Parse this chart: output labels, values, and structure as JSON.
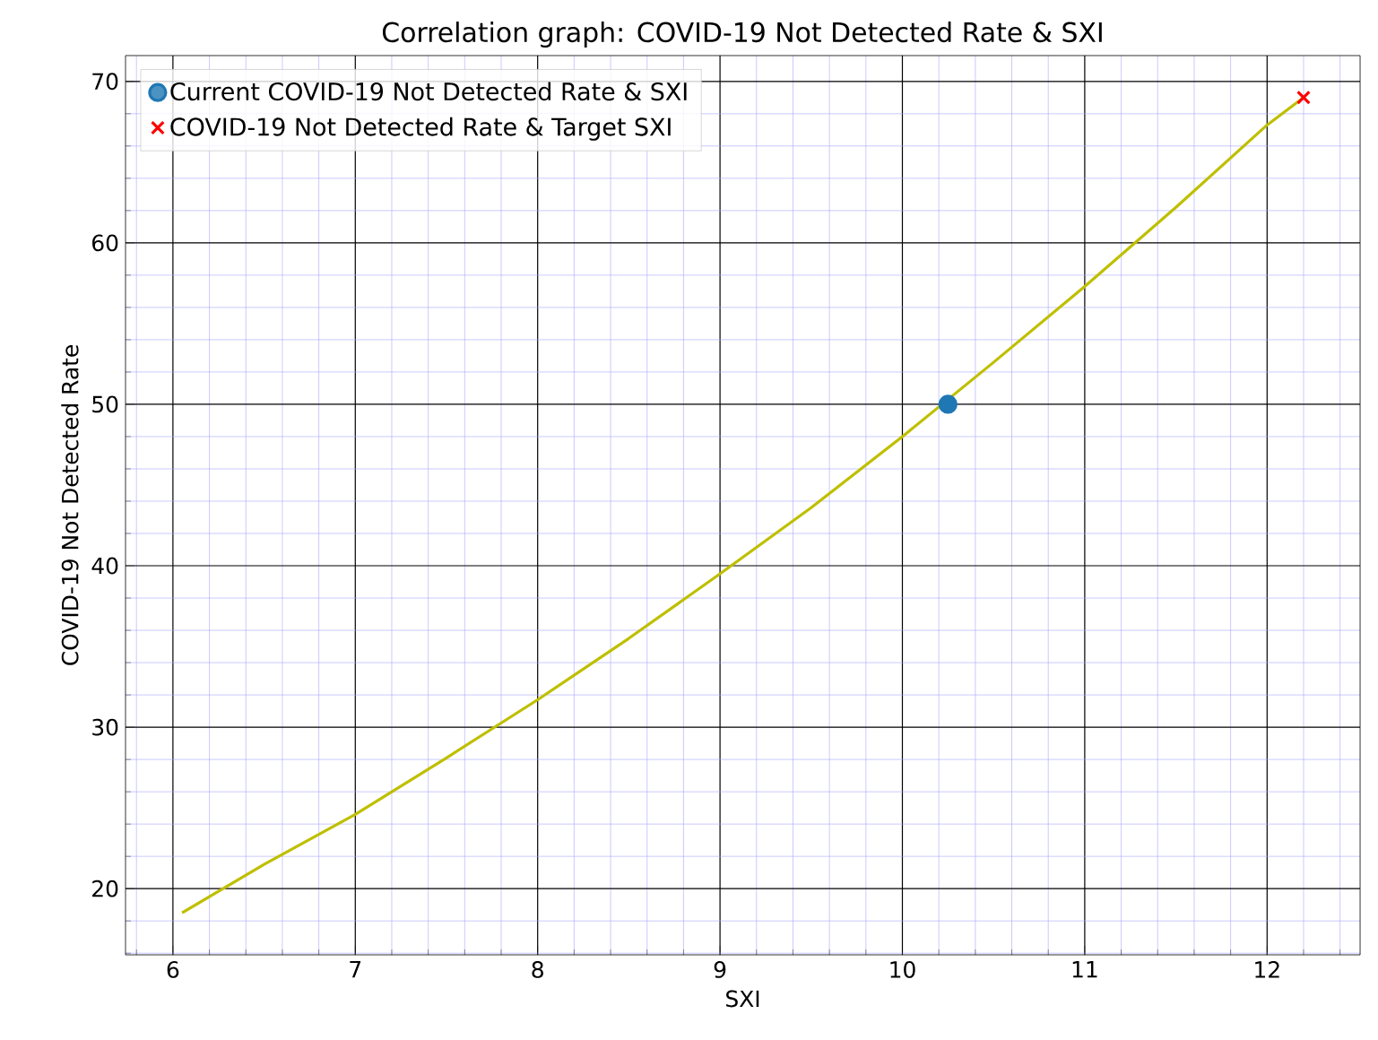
{
  "chart_data": {
    "type": "scatter",
    "title": "Correlation graph: COVID-19 Not Detected Rate & SXI",
    "xlabel": "SXI",
    "ylabel": "COVID-19 Not Detected Rate",
    "xlim": [
      5.74,
      12.51
    ],
    "ylim": [
      15.9,
      71.6
    ],
    "xticks": [
      {
        "value": 5.8,
        "label": null
      },
      6,
      {
        "value": 6.2,
        "label": null
      },
      {
        "value": 6.4,
        "label": null
      },
      {
        "value": 6.6,
        "label": null
      },
      {
        "value": 6.8,
        "label": null
      },
      7,
      {
        "value": 7.2,
        "label": null
      },
      {
        "value": 7.4,
        "label": null
      },
      {
        "value": 7.6,
        "label": null
      },
      {
        "value": 7.8,
        "label": null
      },
      8,
      {
        "value": 8.2,
        "label": null
      },
      {
        "value": 8.4,
        "label": null
      },
      {
        "value": 8.6,
        "label": null
      },
      {
        "value": 8.8,
        "label": null
      },
      9,
      {
        "value": 9.2,
        "label": null
      },
      {
        "value": 9.4,
        "label": null
      },
      {
        "value": 9.6,
        "label": null
      },
      {
        "value": 9.8,
        "label": null
      },
      10,
      {
        "value": 10.2,
        "label": null
      },
      {
        "value": 10.4,
        "label": null
      },
      {
        "value": 10.6,
        "label": null
      },
      {
        "value": 10.8,
        "label": null
      },
      11,
      {
        "value": 11.2,
        "label": null
      },
      {
        "value": 11.4,
        "label": null
      },
      {
        "value": 11.6,
        "label": null
      },
      {
        "value": 11.8,
        "label": null
      },
      12,
      {
        "value": 12.2,
        "label": null
      },
      {
        "value": 12.4,
        "label": null
      }
    ],
    "yticks": [
      {
        "value": 16,
        "label": null
      },
      {
        "value": 18,
        "label": null
      },
      20,
      {
        "value": 22,
        "label": null
      },
      {
        "value": 24,
        "label": null
      },
      {
        "value": 26,
        "label": null
      },
      {
        "value": 28,
        "label": null
      },
      30,
      {
        "value": 32,
        "label": null
      },
      {
        "value": 34,
        "label": null
      },
      {
        "value": 36,
        "label": null
      },
      {
        "value": 38,
        "label": null
      },
      40,
      {
        "value": 42,
        "label": null
      },
      {
        "value": 44,
        "label": null
      },
      {
        "value": 46,
        "label": null
      },
      {
        "value": 48,
        "label": null
      },
      50,
      {
        "value": 52,
        "label": null
      },
      {
        "value": 54,
        "label": null
      },
      {
        "value": 56,
        "label": null
      },
      {
        "value": 58,
        "label": null
      },
      60,
      {
        "value": 62,
        "label": null
      },
      {
        "value": 64,
        "label": null
      },
      {
        "value": 66,
        "label": null
      },
      {
        "value": 68,
        "label": null
      },
      70
    ],
    "grid": true,
    "legend": "top left",
    "series": [
      {
        "type": "line",
        "color": "#bfbf00",
        "marker": "none",
        "x": [
          6.05,
          6.5,
          7,
          7.5,
          8,
          8.5,
          9,
          9.5,
          10,
          10.5,
          11,
          11.5,
          12,
          12.2
        ],
        "values": [
          18.5,
          21.5,
          24.6,
          28.1,
          31.7,
          35.5,
          39.5,
          43.6,
          48,
          52.6,
          57.3,
          62.2,
          67.3,
          69
        ]
      },
      {
        "name": "Current COVID-19 Not Detected Rate & SXI",
        "color": "#1f77b4",
        "marker": "circle",
        "x": [
          10.25
        ],
        "values": [
          50
        ]
      },
      {
        "name": "COVID-19 Not Detected Rate & Target SXI",
        "color": "#ff0000",
        "marker": "cross",
        "x": [
          12.2
        ],
        "values": [
          69
        ]
      }
    ]
  }
}
